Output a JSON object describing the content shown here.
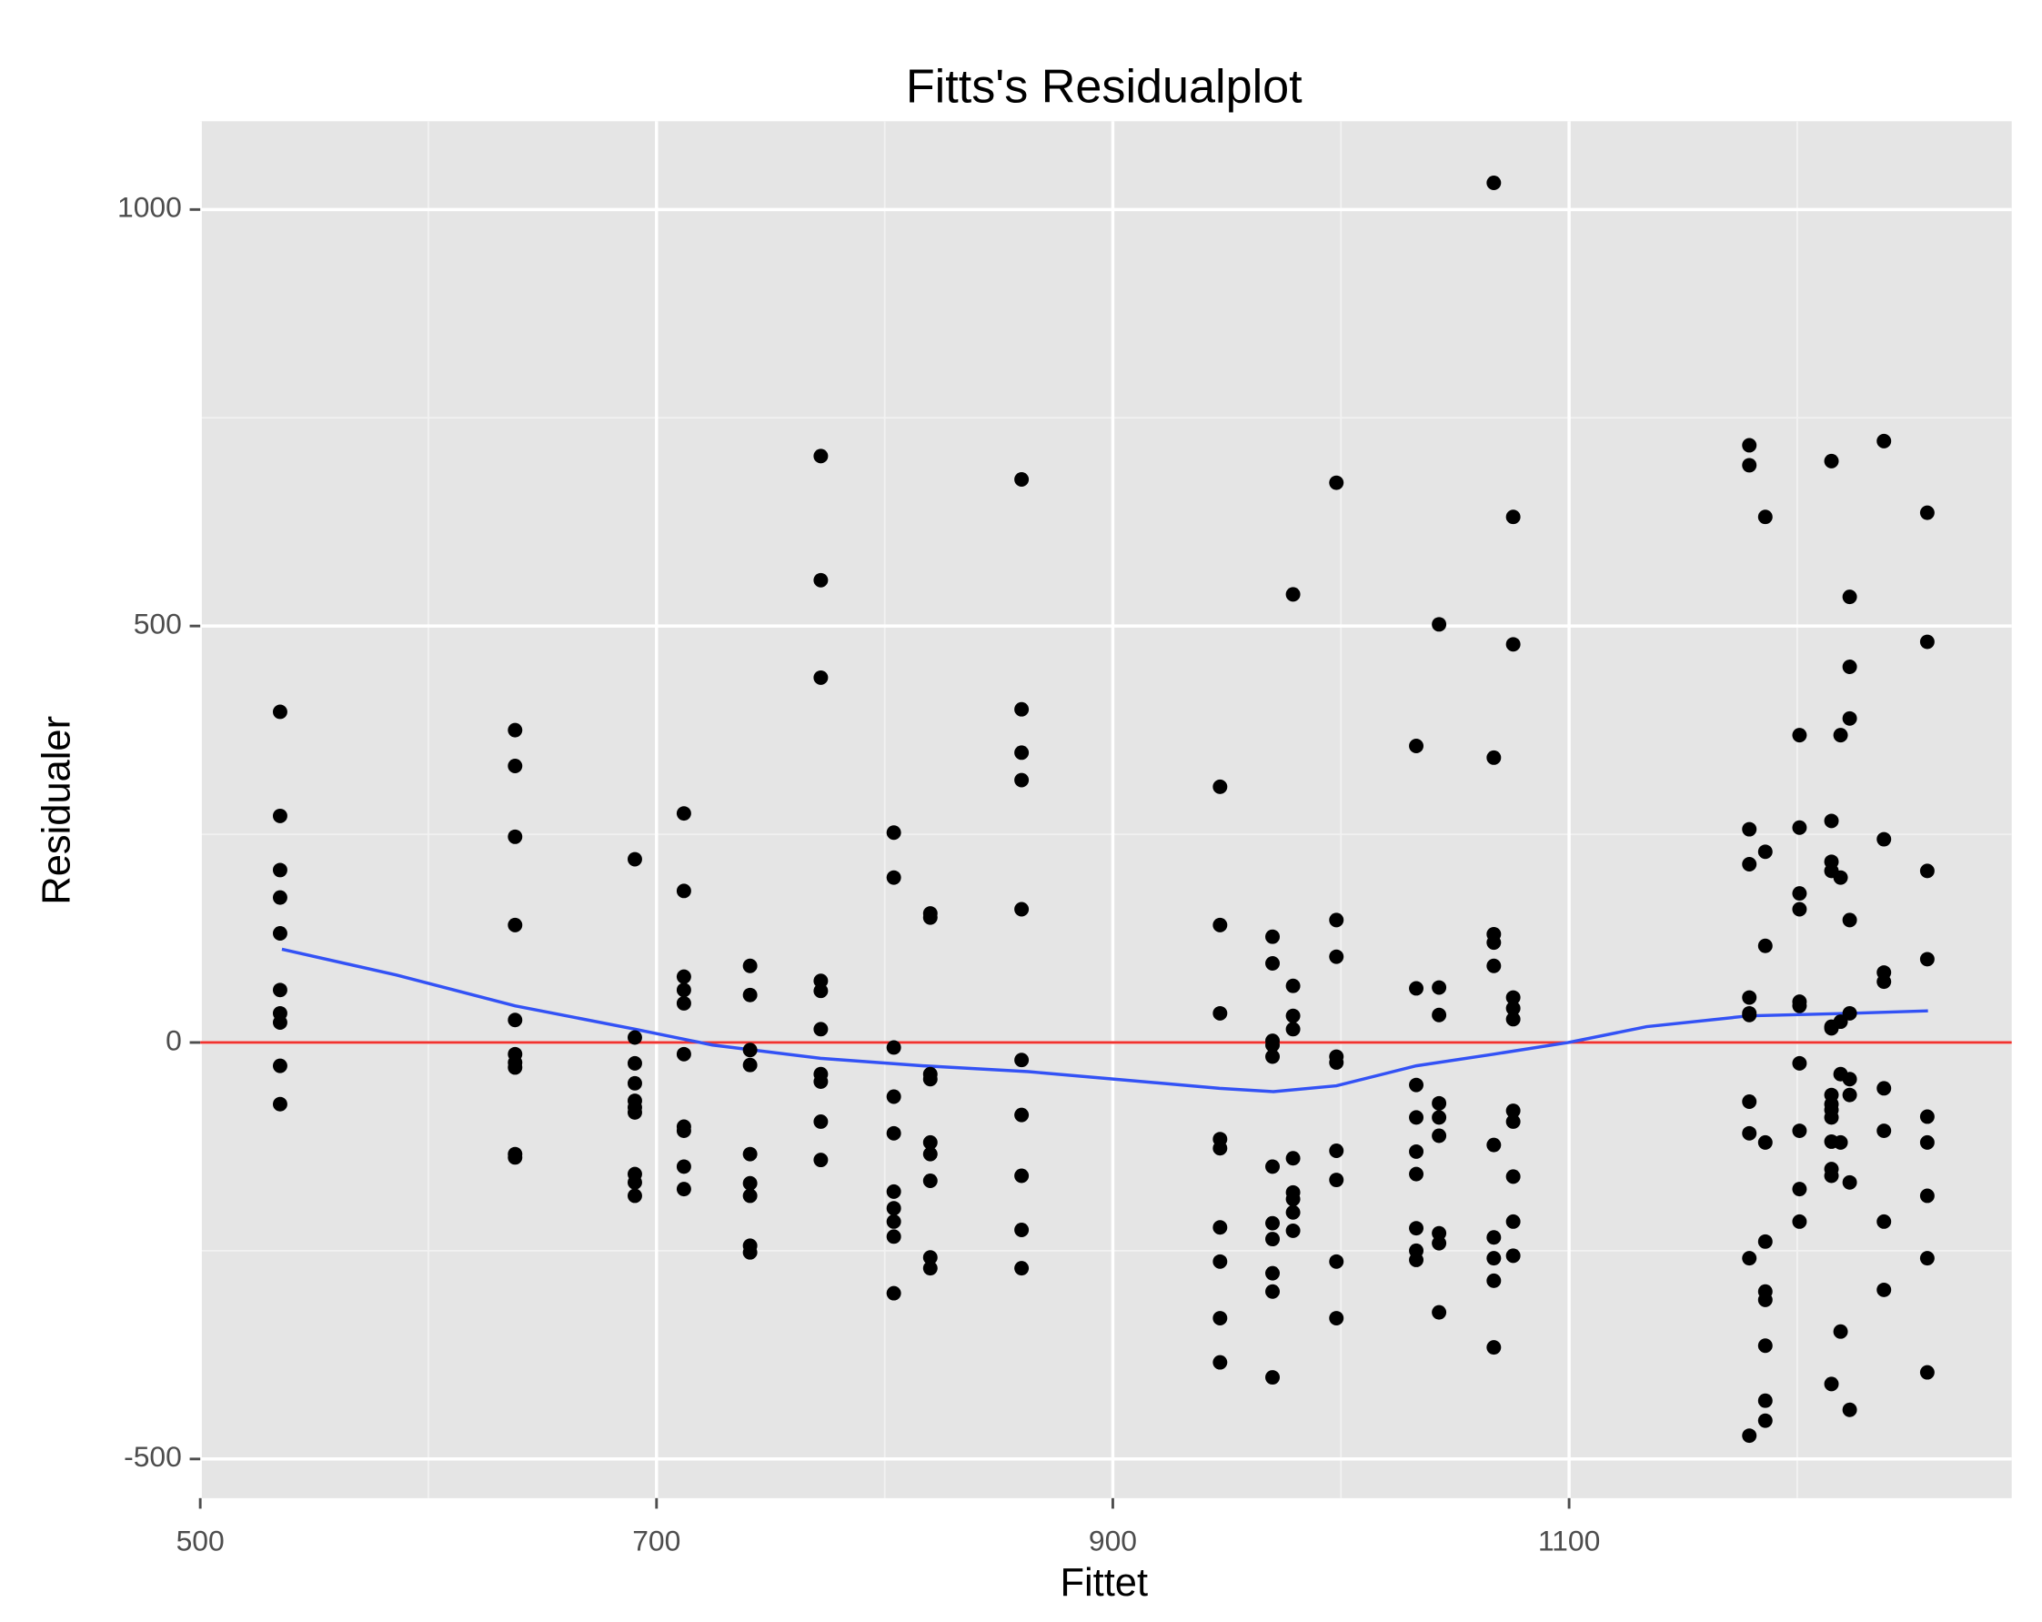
{
  "chart_data": {
    "type": "scatter",
    "title": "Fitts's Residualplot",
    "x_label": "Fittet",
    "y_label": "Residualer",
    "xlim": [
      500,
      1294
    ],
    "ylim": [
      -547,
      1106
    ],
    "xticks": [
      500,
      700,
      900,
      1100
    ],
    "yticks": [
      -500,
      0,
      500,
      1000
    ],
    "xminor": [
      600,
      800,
      1000,
      1200
    ],
    "yminor": [
      -250,
      250,
      750
    ],
    "grid": true,
    "panel_color": "#e5e5e5",
    "hline": {
      "y": 0,
      "color": "#f0332f"
    },
    "points": {
      "color": "#000000",
      "x": [
        535,
        535,
        535,
        535,
        535,
        535,
        535,
        535,
        535,
        535,
        638,
        638,
        638,
        638,
        638,
        638,
        638,
        638,
        638,
        638,
        690.5,
        690.5,
        690.5,
        690.5,
        690.5,
        690.5,
        690.5,
        690.5,
        690.5,
        690.5,
        712,
        712,
        712,
        712,
        712,
        712,
        712,
        712,
        712,
        712,
        741,
        741,
        741,
        741,
        741,
        741,
        741,
        741,
        741,
        772,
        772,
        772,
        772,
        772,
        772,
        772,
        772,
        772,
        772,
        804,
        804,
        804,
        804,
        804,
        804,
        804,
        804,
        804,
        804,
        820,
        820,
        820,
        820,
        820,
        820,
        820,
        820,
        820,
        860,
        860,
        860,
        860,
        860,
        860,
        860,
        860,
        860,
        860,
        947,
        947,
        947,
        947,
        947,
        947,
        947,
        947,
        947,
        970,
        970,
        970,
        970,
        970,
        970,
        970,
        970,
        970,
        970,
        970,
        979,
        979,
        979,
        979,
        979,
        979,
        979,
        979,
        979,
        998,
        998,
        998,
        998,
        998,
        998,
        998,
        998,
        998,
        1033,
        1033,
        1033,
        1033,
        1033,
        1033,
        1033,
        1033,
        1033,
        1043,
        1043,
        1043,
        1043,
        1043,
        1043,
        1043,
        1043,
        1043,
        1067,
        1067,
        1067,
        1067,
        1067,
        1067,
        1067,
        1067,
        1067,
        1067,
        1075.5,
        1075.5,
        1075.5,
        1075.5,
        1075.5,
        1075.5,
        1075.5,
        1075.5,
        1075.5,
        1075.5,
        1179,
        1179,
        1179,
        1179,
        1179,
        1179,
        1179,
        1179,
        1179,
        1179,
        1179,
        1186,
        1186,
        1186,
        1186,
        1186,
        1186,
        1186,
        1186,
        1186,
        1186,
        1201,
        1201,
        1201,
        1201,
        1201,
        1201,
        1201,
        1201,
        1201,
        1201,
        1215,
        1215,
        1215,
        1215,
        1215,
        1215,
        1215,
        1215,
        1215,
        1215,
        1215,
        1215,
        1215,
        1215,
        1219,
        1219,
        1219,
        1219,
        1219,
        1219,
        1223,
        1223,
        1223,
        1223,
        1223,
        1223,
        1223,
        1223,
        1223,
        1238,
        1238,
        1238,
        1238,
        1238,
        1238,
        1238,
        1238,
        1257,
        1257,
        1257,
        1257,
        1257,
        1257,
        1257,
        1257,
        1257
      ],
      "y": [
        397,
        272,
        207,
        174,
        131,
        63,
        35,
        24,
        -28,
        -74,
        375,
        332,
        247,
        141,
        27,
        -14,
        -24,
        -30,
        -134,
        -138,
        220,
        6,
        -25,
        -49,
        -70,
        -78,
        -84,
        -158,
        -168,
        -184,
        275,
        182,
        79,
        63,
        47,
        -14,
        -101,
        -106,
        -149,
        -176,
        92,
        57,
        -9,
        -27,
        -134,
        -169,
        -184,
        -244,
        -252,
        704,
        555,
        438,
        74,
        62,
        16,
        -38,
        -47,
        -95,
        -141,
        252,
        198,
        -6,
        -65,
        -109,
        -179,
        -199,
        -215,
        -233,
        -301,
        155,
        150,
        -38,
        -44,
        -120,
        -134,
        -166,
        -258,
        -271,
        676,
        400,
        348,
        315,
        160,
        -21,
        -87,
        -160,
        -225,
        -271,
        307,
        141,
        35,
        -116,
        -127,
        -222,
        -263,
        -331,
        -384,
        127,
        95,
        2,
        -3,
        -17,
        -149,
        -217,
        -236,
        -277,
        -299,
        -402,
        538,
        68,
        32,
        16,
        -139,
        -180,
        -188,
        -204,
        -226,
        672,
        147,
        103,
        -17,
        -24,
        -130,
        -165,
        -263,
        -331,
        356,
        65,
        -51,
        -90,
        -131,
        -158,
        -223,
        -250,
        -261,
        502,
        66,
        33,
        -73,
        -90,
        -112,
        -229,
        -241,
        -324,
        1032,
        342,
        130,
        120,
        92,
        -123,
        -234,
        -259,
        -286,
        -366,
        631,
        478,
        54,
        41,
        28,
        -82,
        -95,
        -161,
        -215,
        -256,
        717,
        693,
        256,
        214,
        54,
        35,
        33,
        -71,
        -109,
        -259,
        -472,
        631,
        229,
        116,
        -120,
        -239,
        -299,
        -309,
        -364,
        -430,
        -454,
        369,
        258,
        179,
        160,
        49,
        44,
        -25,
        -106,
        -176,
        -215,
        698,
        266,
        217,
        206,
        19,
        17,
        -63,
        -74,
        -81,
        -90,
        -119,
        -152,
        -160,
        -410,
        369,
        198,
        25,
        -38,
        -120,
        -347,
        535,
        451,
        389,
        147,
        35,
        -44,
        -63,
        -168,
        -441,
        722,
        244,
        84,
        73,
        -55,
        -106,
        -215,
        -297,
        636,
        481,
        206,
        100,
        -89,
        -120,
        -184,
        -259,
        -396
      ]
    },
    "smooth": {
      "color": "#3352f5",
      "x": [
        535.8,
        586,
        638,
        690.5,
        724.5,
        771.9,
        816.9,
        863,
        900.6,
        946.8,
        970.4,
        998,
        1033,
        1067,
        1099.7,
        1134,
        1178.8,
        1223,
        1257.3
      ],
      "y": [
        112,
        81,
        44,
        16,
        -3,
        -19,
        -28,
        -35,
        -44,
        -55,
        -59,
        -52,
        -28,
        -14,
        0,
        19,
        32,
        35,
        38
      ]
    }
  }
}
